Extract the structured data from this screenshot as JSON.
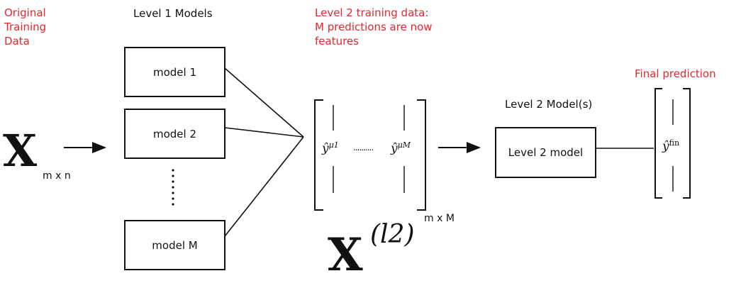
{
  "labels": {
    "original_data": [
      "Original",
      "Training",
      "Data"
    ],
    "level1_title": "Level 1 Models",
    "level2_data": [
      "Level 2 training data:",
      "M predictions are now",
      "features"
    ],
    "level2_model_title": "Level 2 Model(s)",
    "final_prediction": "Final prediction"
  },
  "models": {
    "model1": "model 1",
    "model2": "model 2",
    "modelM": "model M",
    "level2": "Level 2 model"
  },
  "math": {
    "x_symbol": "X",
    "x_dims": "m x n",
    "xl2_symbol": "X",
    "xl2_superscript": "(l2)",
    "xl2_dims": "m x M",
    "yhat1_base": "ŷ",
    "yhat1_sup": "μ1",
    "yhatM_base": "ŷ",
    "yhatM_sup": "μM",
    "ellipsis": "..........",
    "yfin_base": "ŷ",
    "yfin_sup": "fin"
  },
  "colors": {
    "annotation": "#e8262d",
    "ink": "#111111"
  }
}
